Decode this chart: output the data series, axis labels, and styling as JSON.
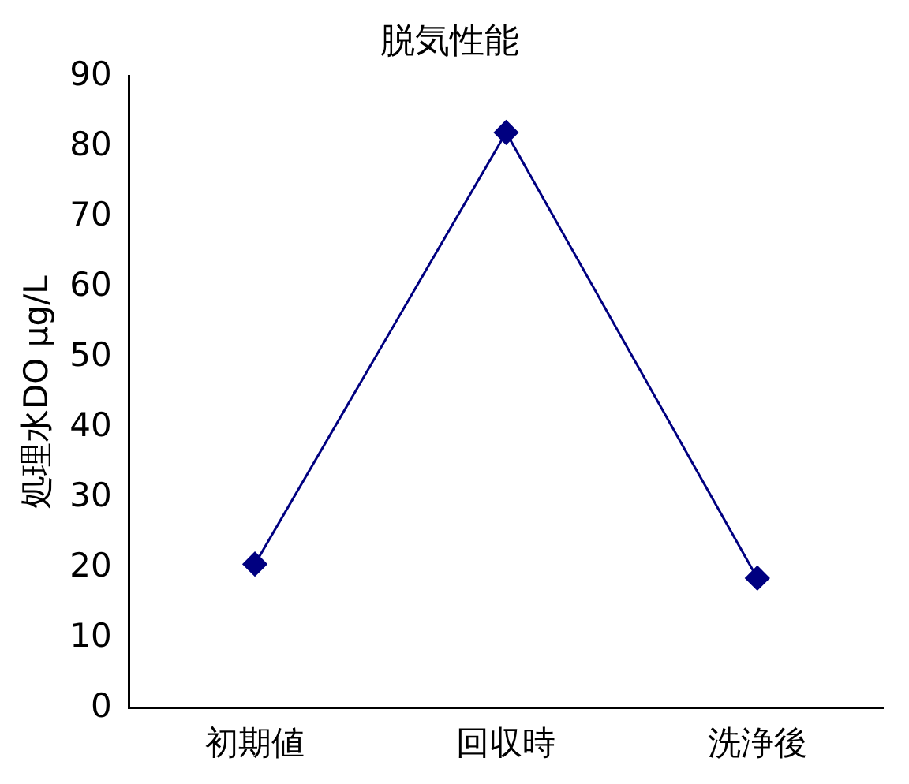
{
  "chart_data": {
    "type": "line",
    "title": "脱気性能",
    "ylabel": "処理水DO μg/L",
    "categories": [
      "初期値",
      "回収時",
      "洗浄後"
    ],
    "series": [
      {
        "color": "#000080",
        "values": [
          20.5,
          82,
          18.5
        ]
      }
    ],
    "ylim": [
      0,
      90
    ],
    "yticks": [
      0,
      10,
      20,
      30,
      40,
      50,
      60,
      70,
      80,
      90
    ],
    "grid": false,
    "legend": false,
    "marker": "diamond",
    "line_style": "solid"
  }
}
